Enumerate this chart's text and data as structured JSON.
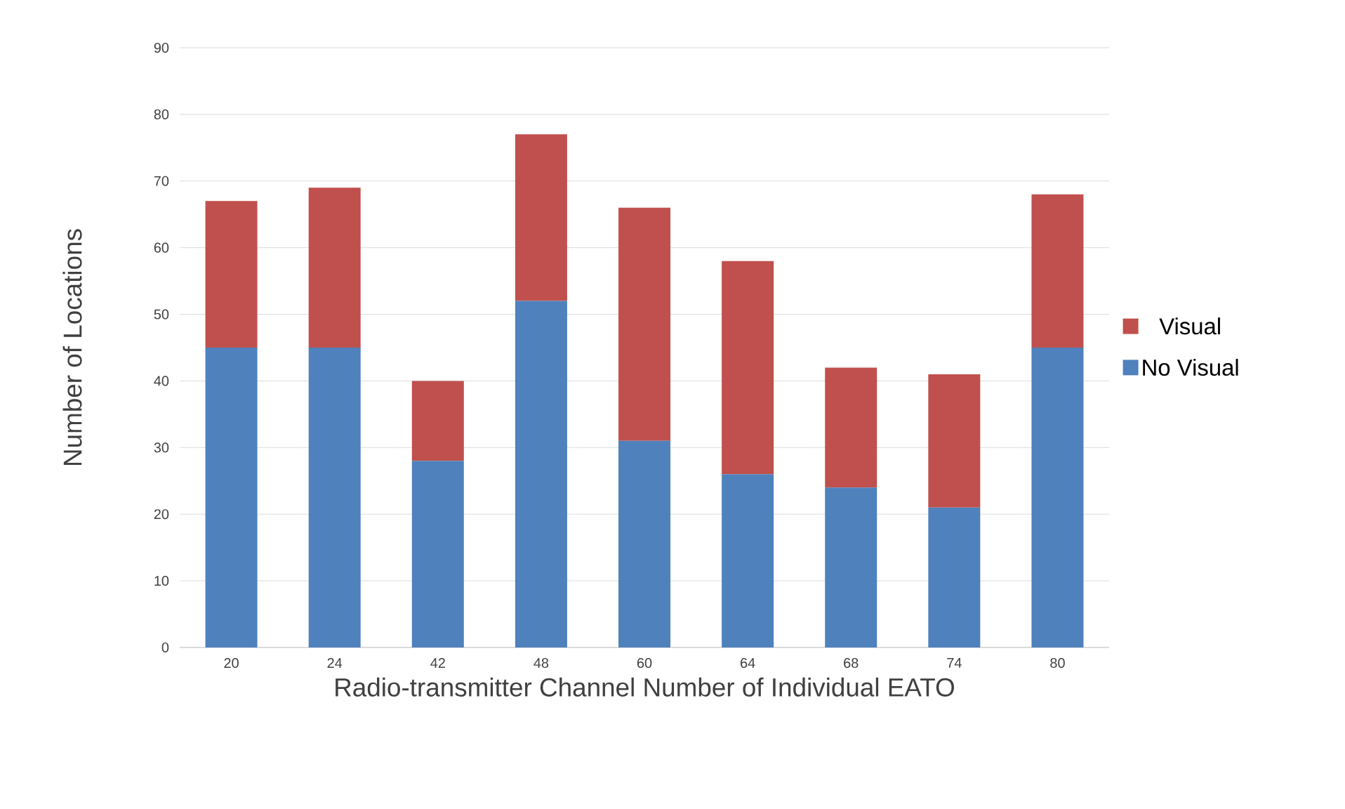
{
  "chart_data": {
    "type": "bar",
    "stacked": true,
    "xlabel": "Radio-transmitter Channel Number of Individual EATO",
    "ylabel": "Number of Locations",
    "categories": [
      "20",
      "24",
      "42",
      "48",
      "60",
      "64",
      "68",
      "74",
      "80"
    ],
    "series": [
      {
        "name": "No Visual",
        "color": "#4f81bd",
        "values": [
          45,
          45,
          28,
          52,
          31,
          26,
          24,
          21,
          45
        ]
      },
      {
        "name": "Visual",
        "color": "#c0504d",
        "values": [
          22,
          24,
          12,
          25,
          35,
          32,
          18,
          20,
          23
        ]
      }
    ],
    "ylim": [
      0,
      90
    ],
    "yticks": [
      0,
      10,
      20,
      30,
      40,
      50,
      60,
      70,
      80,
      90
    ],
    "grid": "y",
    "legend": "right"
  }
}
